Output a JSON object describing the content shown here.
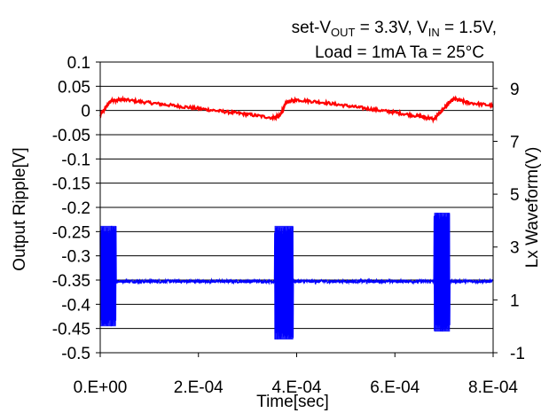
{
  "chart_data": {
    "type": "line",
    "title_lines": [
      "set-V",
      "OUT",
      " = 3.3V,  V",
      "IN",
      " = 1.5V,",
      "Load = 1mA Ta = 25°C"
    ],
    "xlabel": "Time[sec]",
    "ylabel_left": "Output Ripple[V]",
    "ylabel_right": "Lx Waveform(V)",
    "xlim": [
      0,
      0.0008
    ],
    "ylim_left": [
      -0.5,
      0.1
    ],
    "ylim_right": [
      -1,
      10
    ],
    "x_ticks": [
      "0.E+00",
      "2.E-04",
      "4.E-04",
      "6.E-04",
      "8.E-04"
    ],
    "x_tick_values": [
      0,
      0.0002,
      0.0004,
      0.0006,
      0.0008
    ],
    "y_left_ticks": [
      "0.1",
      "0.05",
      "0",
      "-0.05",
      "-0.1",
      "-0.15",
      "-0.2",
      "-0.25",
      "-0.3",
      "-0.35",
      "-0.4",
      "-0.45",
      "-0.5"
    ],
    "y_left_tick_values": [
      0.1,
      0.05,
      0,
      -0.05,
      -0.1,
      -0.15,
      -0.2,
      -0.25,
      -0.3,
      -0.35,
      -0.4,
      -0.45,
      -0.5
    ],
    "y_right_ticks": [
      "9",
      "7",
      "5",
      "3",
      "1",
      "-1"
    ],
    "y_right_tick_values": [
      9,
      7,
      5,
      3,
      1,
      -1
    ],
    "grid": "horizontal",
    "series": [
      {
        "axis": "left",
        "color": "#ff0000",
        "x": [
          0,
          2e-05,
          3e-05,
          5e-05,
          0.0001,
          0.00015,
          0.0002,
          0.00025,
          0.0003,
          0.00035,
          0.000365,
          0.00038,
          0.0004,
          0.00045,
          0.0005,
          0.00055,
          0.0006,
          0.00065,
          0.00068,
          0.0007,
          0.00072,
          0.00075,
          0.0008
        ],
        "values": [
          -0.01,
          0.018,
          0.022,
          0.022,
          0.016,
          0.01,
          0.004,
          -0.002,
          -0.008,
          -0.015,
          -0.012,
          0.018,
          0.022,
          0.017,
          0.01,
          0.003,
          -0.004,
          -0.012,
          -0.018,
          0.005,
          0.024,
          0.016,
          0.01
        ]
      },
      {
        "axis": "right",
        "color": "#0000ff",
        "baseline": 1.7,
        "noise": 0.12,
        "bursts": [
          {
            "start": 0,
            "end": 3.2e-05,
            "high": 3.8,
            "low": 0.0
          },
          {
            "start": 0.000355,
            "end": 0.000393,
            "high": 3.8,
            "low": -0.5
          },
          {
            "start": 0.00068,
            "end": 0.000712,
            "high": 4.3,
            "low": -0.2
          }
        ]
      }
    ]
  }
}
